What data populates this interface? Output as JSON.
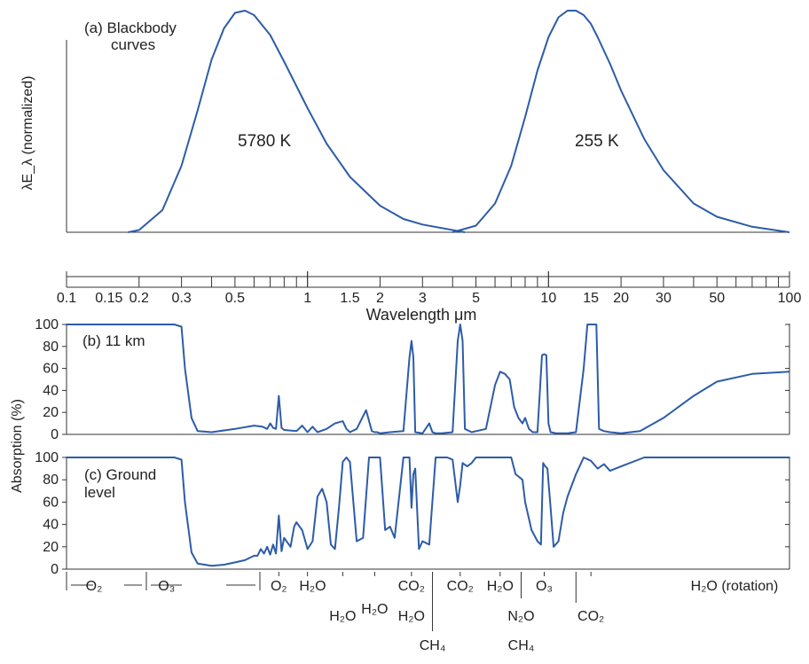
{
  "chart_data": [
    {
      "type": "line",
      "panel_label": "(a) Blackbody",
      "panel_label_2": "curves",
      "ylabel": "λE_λ (normalized)",
      "x_scale": "log",
      "series": [
        {
          "name": "5780 K",
          "x": [
            0.18,
            0.2,
            0.25,
            0.3,
            0.35,
            0.4,
            0.45,
            0.5,
            0.55,
            0.6,
            0.7,
            0.8,
            1.0,
            1.2,
            1.5,
            2,
            2.5,
            3,
            4,
            4.5
          ],
          "y": [
            0.0,
            0.01,
            0.1,
            0.3,
            0.55,
            0.78,
            0.92,
            0.99,
            1.0,
            0.98,
            0.89,
            0.77,
            0.56,
            0.4,
            0.25,
            0.12,
            0.06,
            0.035,
            0.01,
            0.0
          ]
        },
        {
          "name": "255 K",
          "x": [
            4.0,
            5,
            6,
            7,
            8,
            9,
            10,
            11,
            12,
            13,
            14,
            15,
            16,
            18,
            20,
            25,
            30,
            40,
            50,
            70,
            100
          ],
          "y": [
            0.0,
            0.03,
            0.13,
            0.3,
            0.52,
            0.73,
            0.88,
            0.97,
            1.0,
            1.0,
            0.98,
            0.94,
            0.88,
            0.76,
            0.64,
            0.42,
            0.28,
            0.13,
            0.07,
            0.025,
            0.0
          ]
        }
      ]
    },
    {
      "type": "line",
      "panel_label": "(b) 11 km",
      "ylabel": "Absorption (%)",
      "x_scale": "log",
      "xlim": [
        0.1,
        100
      ],
      "ylim": [
        0,
        100
      ],
      "yticks": [
        "0",
        "20",
        "40",
        "60",
        "80",
        "100"
      ],
      "series": [
        {
          "name": "",
          "x": [
            0.1,
            0.2,
            0.28,
            0.3,
            0.31,
            0.33,
            0.35,
            0.4,
            0.5,
            0.6,
            0.65,
            0.68,
            0.7,
            0.72,
            0.74,
            0.76,
            0.78,
            0.8,
            0.9,
            0.95,
            1.0,
            1.05,
            1.1,
            1.2,
            1.3,
            1.4,
            1.45,
            1.5,
            1.6,
            1.75,
            1.85,
            1.9,
            1.95,
            2.0,
            2.2,
            2.5,
            2.65,
            2.7,
            2.75,
            2.8,
            3.0,
            3.2,
            3.3,
            3.4,
            3.6,
            4.0,
            4.2,
            4.3,
            4.4,
            4.5,
            4.8,
            5.5,
            6.0,
            6.3,
            6.6,
            6.9,
            7.2,
            7.5,
            7.8,
            8.0,
            8.3,
            8.6,
            9.0,
            9.4,
            9.6,
            9.8,
            10.0,
            10.2,
            10.8,
            12,
            13,
            14,
            14.5,
            15,
            15.8,
            16.2,
            17,
            18,
            20,
            24,
            30,
            40,
            50,
            70,
            100
          ],
          "y": [
            100,
            100,
            100,
            98,
            60,
            15,
            3,
            2,
            5,
            8,
            7,
            5,
            10,
            6,
            5,
            35,
            6,
            4,
            3,
            8,
            2,
            7,
            2,
            5,
            10,
            12,
            5,
            2,
            5,
            22,
            3,
            2,
            2,
            1,
            2,
            3,
            70,
            85,
            70,
            2,
            1,
            10,
            2,
            1,
            1,
            2,
            85,
            100,
            85,
            5,
            2,
            5,
            45,
            57,
            55,
            50,
            25,
            15,
            10,
            15,
            5,
            2,
            2,
            72,
            73,
            72,
            10,
            2,
            1,
            1,
            2,
            60,
            100,
            100,
            100,
            5,
            3,
            2,
            1,
            3,
            15,
            35,
            48,
            55,
            57
          ]
        }
      ]
    },
    {
      "type": "line",
      "panel_label": "(c) Ground",
      "panel_label_2": "level",
      "ylabel": "Absorption (%)",
      "x_scale": "log",
      "xlim": [
        0.1,
        100
      ],
      "ylim": [
        0,
        100
      ],
      "yticks": [
        "0",
        "20",
        "40",
        "60",
        "80",
        "100"
      ],
      "series": [
        {
          "name": "",
          "x": [
            0.1,
            0.2,
            0.28,
            0.3,
            0.31,
            0.33,
            0.35,
            0.4,
            0.45,
            0.5,
            0.55,
            0.6,
            0.62,
            0.64,
            0.66,
            0.68,
            0.7,
            0.72,
            0.74,
            0.76,
            0.78,
            0.8,
            0.85,
            0.88,
            0.9,
            0.95,
            1.0,
            1.05,
            1.1,
            1.15,
            1.2,
            1.25,
            1.3,
            1.35,
            1.4,
            1.45,
            1.5,
            1.6,
            1.7,
            1.8,
            1.9,
            2.0,
            2.1,
            2.2,
            2.3,
            2.5,
            2.6,
            2.65,
            2.7,
            2.75,
            2.8,
            2.9,
            3.0,
            3.2,
            3.4,
            3.6,
            3.8,
            4.0,
            4.2,
            4.3,
            4.4,
            4.6,
            4.8,
            5.0,
            5.5,
            6.0,
            6.5,
            7.0,
            7.3,
            7.6,
            7.8,
            8.0,
            8.5,
            9.0,
            9.3,
            9.5,
            9.7,
            9.9,
            10.2,
            10.5,
            11,
            11.5,
            12,
            13,
            14,
            15,
            16,
            17,
            18,
            20,
            25,
            30,
            40,
            50,
            70,
            100
          ],
          "y": [
            100,
            100,
            100,
            98,
            60,
            15,
            5,
            3,
            4,
            6,
            8,
            12,
            12,
            18,
            14,
            20,
            13,
            22,
            14,
            48,
            16,
            28,
            20,
            38,
            42,
            35,
            18,
            25,
            65,
            72,
            60,
            22,
            18,
            55,
            96,
            100,
            96,
            25,
            28,
            100,
            100,
            100,
            35,
            38,
            28,
            100,
            100,
            100,
            55,
            85,
            90,
            18,
            25,
            22,
            100,
            100,
            100,
            98,
            60,
            75,
            95,
            92,
            95,
            100,
            100,
            100,
            100,
            100,
            85,
            82,
            80,
            60,
            35,
            25,
            22,
            95,
            92,
            90,
            55,
            20,
            25,
            50,
            65,
            85,
            100,
            97,
            90,
            94,
            88,
            92,
            100,
            100,
            100,
            100,
            100,
            100
          ]
        }
      ]
    }
  ],
  "annotations": {
    "temp_sun": "5780 K",
    "temp_earth": "255 K",
    "x_axis_label": "Wavelength μm",
    "x_tick_labels": [
      {
        "v": 0.1,
        "t": "0.1"
      },
      {
        "v": 0.15,
        "t": "0.15"
      },
      {
        "v": 0.2,
        "t": "0.2"
      },
      {
        "v": 0.3,
        "t": "0.3"
      },
      {
        "v": 0.5,
        "t": "0.5"
      },
      {
        "v": 1,
        "t": "1"
      },
      {
        "v": 1.5,
        "t": "1.5"
      },
      {
        "v": 2,
        "t": "2"
      },
      {
        "v": 3,
        "t": "3"
      },
      {
        "v": 5,
        "t": "5"
      },
      {
        "v": 10,
        "t": "10"
      },
      {
        "v": 15,
        "t": "15"
      },
      {
        "v": 20,
        "t": "20"
      },
      {
        "v": 30,
        "t": "30"
      },
      {
        "v": 50,
        "t": "50"
      },
      {
        "v": 100,
        "t": "100"
      }
    ],
    "gas_labels": [
      {
        "x": 0.13,
        "row": 0,
        "t": "O₂"
      },
      {
        "x": 0.26,
        "row": 0,
        "t": "O₃"
      },
      {
        "x": 0.76,
        "row": 0,
        "t": "O₂"
      },
      {
        "x": 1.05,
        "row": 0,
        "t": "H₂O"
      },
      {
        "x": 1.4,
        "row": 2,
        "t": "H₂O"
      },
      {
        "x": 1.9,
        "row": 1,
        "t": "H₂O"
      },
      {
        "x": 2.7,
        "row": 0,
        "t": "CO₂"
      },
      {
        "x": 2.7,
        "row": 2,
        "t": "H₂O"
      },
      {
        "x": 3.3,
        "row": 3,
        "t": "CH₄"
      },
      {
        "x": 4.3,
        "row": 0,
        "t": "CO₂"
      },
      {
        "x": 6.3,
        "row": 0,
        "t": "H₂O"
      },
      {
        "x": 7.7,
        "row": 2,
        "t": "N₂O"
      },
      {
        "x": 7.7,
        "row": 3,
        "t": "CH₄"
      },
      {
        "x": 9.6,
        "row": 0,
        "t": "O₃"
      },
      {
        "x": 15,
        "row": 2,
        "t": "CO₂"
      },
      {
        "x": 55,
        "row": 0,
        "t": "H₂O (rotation)"
      }
    ]
  }
}
